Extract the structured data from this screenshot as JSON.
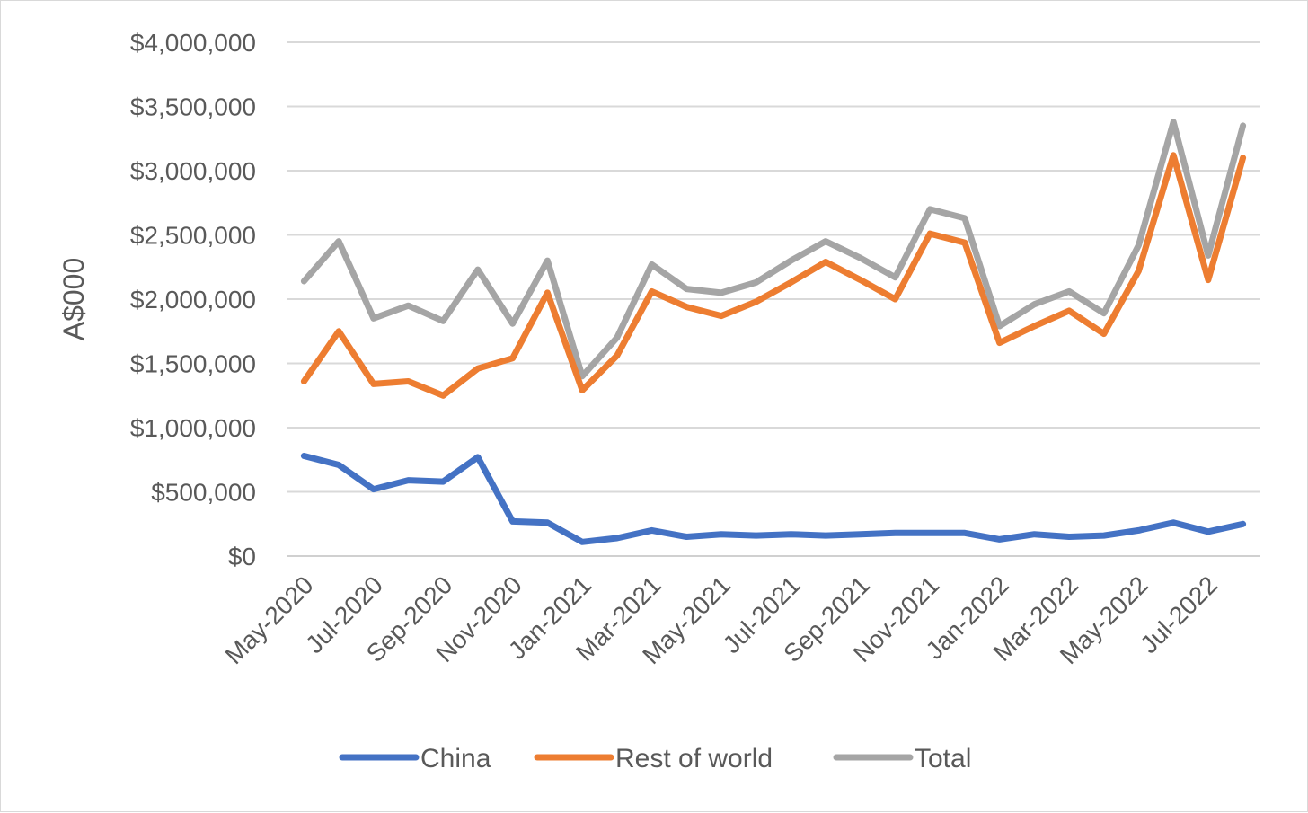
{
  "chart_data": {
    "type": "line",
    "title": "",
    "xlabel": "",
    "ylabel": "A$000",
    "ylim": [
      0,
      4000000
    ],
    "y_ticks": [
      0,
      500000,
      1000000,
      1500000,
      2000000,
      2500000,
      3000000,
      3500000,
      4000000
    ],
    "y_tick_labels": [
      "$0",
      "$500,000",
      "$1,000,000",
      "$1,500,000",
      "$2,000,000",
      "$2,500,000",
      "$3,000,000",
      "$3,500,000",
      "$4,000,000"
    ],
    "x": [
      "May-2020",
      "Jun-2020",
      "Jul-2020",
      "Aug-2020",
      "Sep-2020",
      "Oct-2020",
      "Nov-2020",
      "Dec-2020",
      "Jan-2021",
      "Feb-2021",
      "Mar-2021",
      "Apr-2021",
      "May-2021",
      "Jun-2021",
      "Jul-2021",
      "Aug-2021",
      "Sep-2021",
      "Oct-2021",
      "Nov-2021",
      "Dec-2021",
      "Jan-2022",
      "Feb-2022",
      "Mar-2022",
      "Apr-2022",
      "May-2022",
      "Jun-2022",
      "Jul-2022",
      "Aug-2022"
    ],
    "x_tick_labels": [
      "May-2020",
      "Jul-2020",
      "Sep-2020",
      "Nov-2020",
      "Jan-2021",
      "Mar-2021",
      "May-2021",
      "Jul-2021",
      "Sep-2021",
      "Nov-2021",
      "Jan-2022",
      "Mar-2022",
      "May-2022",
      "Jul-2022"
    ],
    "grid": true,
    "legend_position": "bottom",
    "series": [
      {
        "name": "China",
        "color": "#4472c4",
        "values": [
          780000,
          710000,
          520000,
          590000,
          580000,
          770000,
          270000,
          260000,
          110000,
          140000,
          200000,
          150000,
          170000,
          160000,
          170000,
          160000,
          170000,
          180000,
          180000,
          180000,
          130000,
          170000,
          150000,
          160000,
          200000,
          260000,
          190000,
          250000
        ]
      },
      {
        "name": "Rest of world",
        "color": "#ed7d31",
        "values": [
          1360000,
          1750000,
          1340000,
          1360000,
          1250000,
          1460000,
          1540000,
          2050000,
          1290000,
          1560000,
          2060000,
          1940000,
          1870000,
          1980000,
          2130000,
          2290000,
          2150000,
          2000000,
          2510000,
          2440000,
          1660000,
          1790000,
          1910000,
          1730000,
          2220000,
          3120000,
          2150000,
          3100000
        ]
      },
      {
        "name": "Total",
        "color": "#a5a5a5",
        "values": [
          2140000,
          2450000,
          1850000,
          1950000,
          1830000,
          2230000,
          1810000,
          2300000,
          1400000,
          1700000,
          2270000,
          2080000,
          2050000,
          2130000,
          2300000,
          2450000,
          2320000,
          2170000,
          2700000,
          2630000,
          1790000,
          1960000,
          2060000,
          1890000,
          2420000,
          3380000,
          2340000,
          3350000
        ]
      }
    ]
  }
}
